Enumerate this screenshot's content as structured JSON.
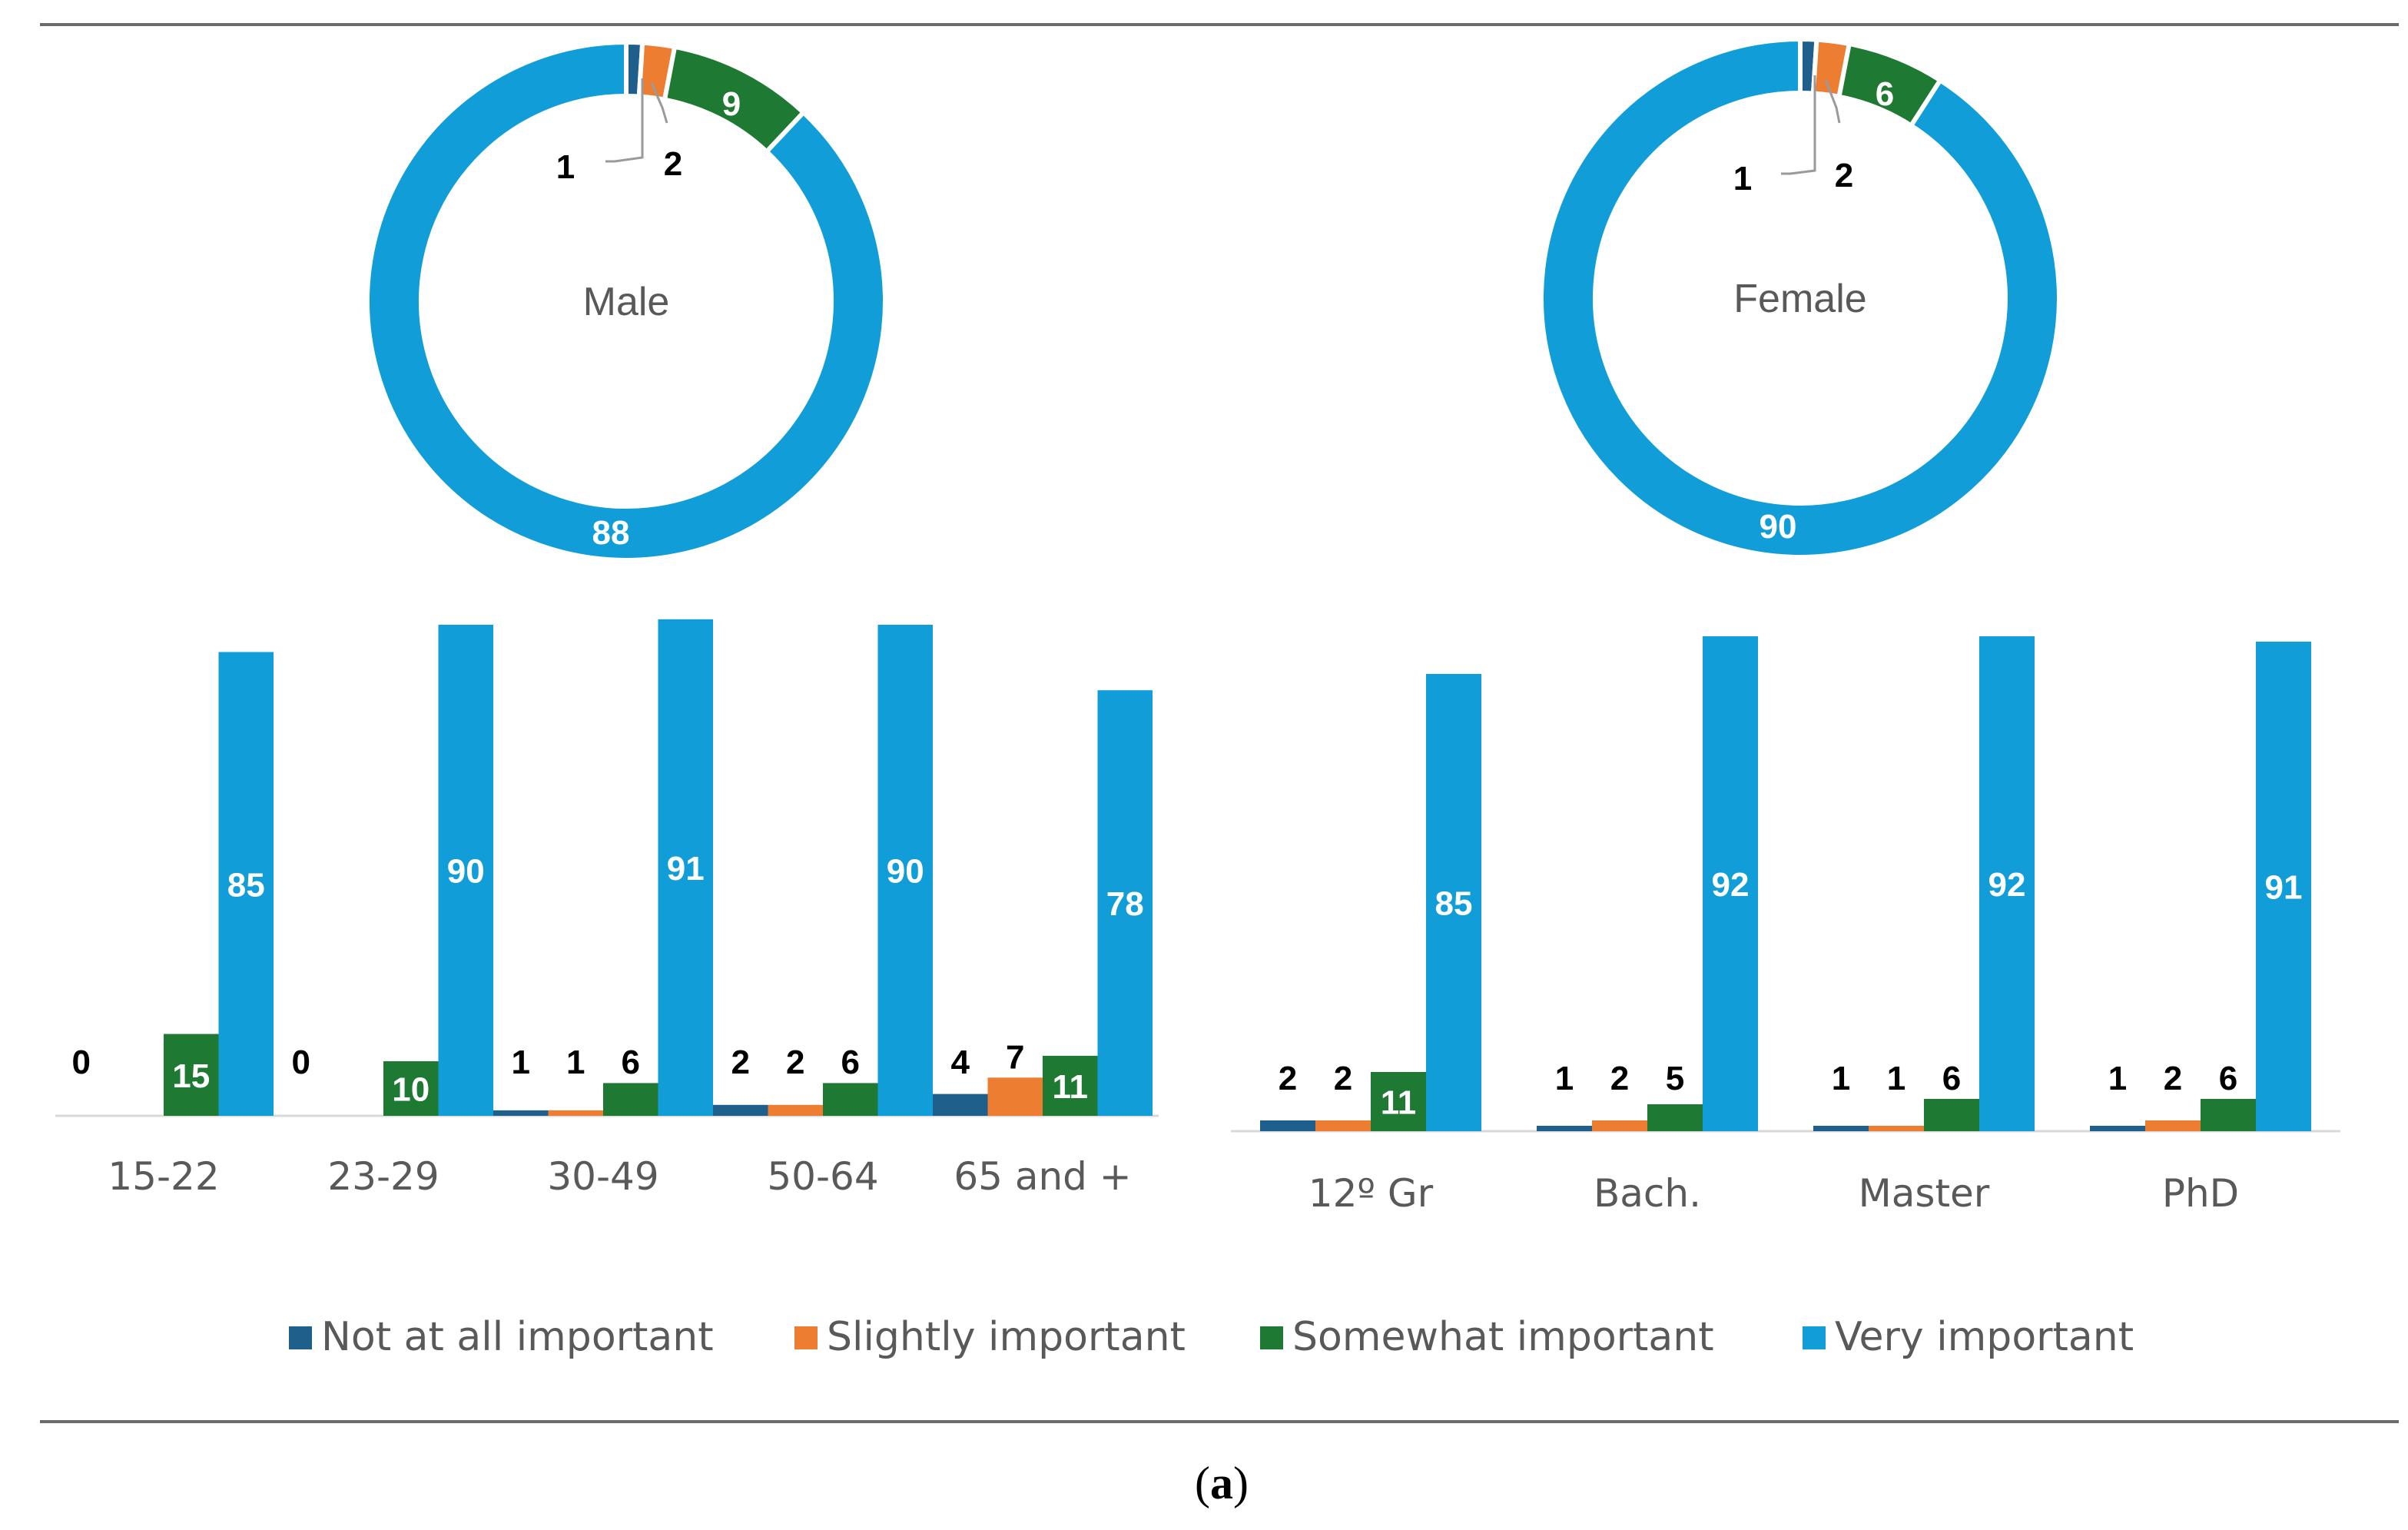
{
  "series_names": [
    "Not at all important",
    "Slightly important",
    "Somewhat important",
    "Very important"
  ],
  "colors": [
    "#1f5f8b",
    "#ed7d31",
    "#1e7a32",
    "#119ed8"
  ],
  "caption_label": "a",
  "chart_data": [
    {
      "type": "pie",
      "variant": "donut",
      "center_label": "Male",
      "labels": [
        "Not at all important",
        "Slightly important",
        "Somewhat important",
        "Very important"
      ],
      "values": [
        1,
        2,
        9,
        88
      ]
    },
    {
      "type": "pie",
      "variant": "donut",
      "center_label": "Female",
      "labels": [
        "Not at all important",
        "Slightly important",
        "Somewhat important",
        "Very important"
      ],
      "values": [
        1,
        2,
        6,
        90
      ]
    },
    {
      "type": "bar",
      "categories": [
        "15-22",
        "23-29",
        "30-49",
        "50-64",
        "65 and +"
      ],
      "ylim": [
        0,
        100
      ],
      "series": [
        {
          "name": "Not at all important",
          "values": [
            0,
            0,
            1,
            2,
            4
          ]
        },
        {
          "name": "Slightly important",
          "values": [
            null,
            null,
            1,
            2,
            7
          ]
        },
        {
          "name": "Somewhat important",
          "values": [
            15,
            10,
            6,
            6,
            11
          ]
        },
        {
          "name": "Very important",
          "values": [
            85,
            90,
            91,
            90,
            78
          ]
        }
      ]
    },
    {
      "type": "bar",
      "categories": [
        "12º Gr",
        "Bach.",
        "Master",
        "PhD"
      ],
      "ylim": [
        0,
        100
      ],
      "series": [
        {
          "name": "Not at all important",
          "values": [
            2,
            1,
            1,
            1
          ]
        },
        {
          "name": "Slightly important",
          "values": [
            2,
            2,
            1,
            2
          ]
        },
        {
          "name": "Somewhat important",
          "values": [
            11,
            5,
            6,
            6
          ]
        },
        {
          "name": "Very important",
          "values": [
            85,
            92,
            92,
            91
          ]
        }
      ]
    }
  ]
}
